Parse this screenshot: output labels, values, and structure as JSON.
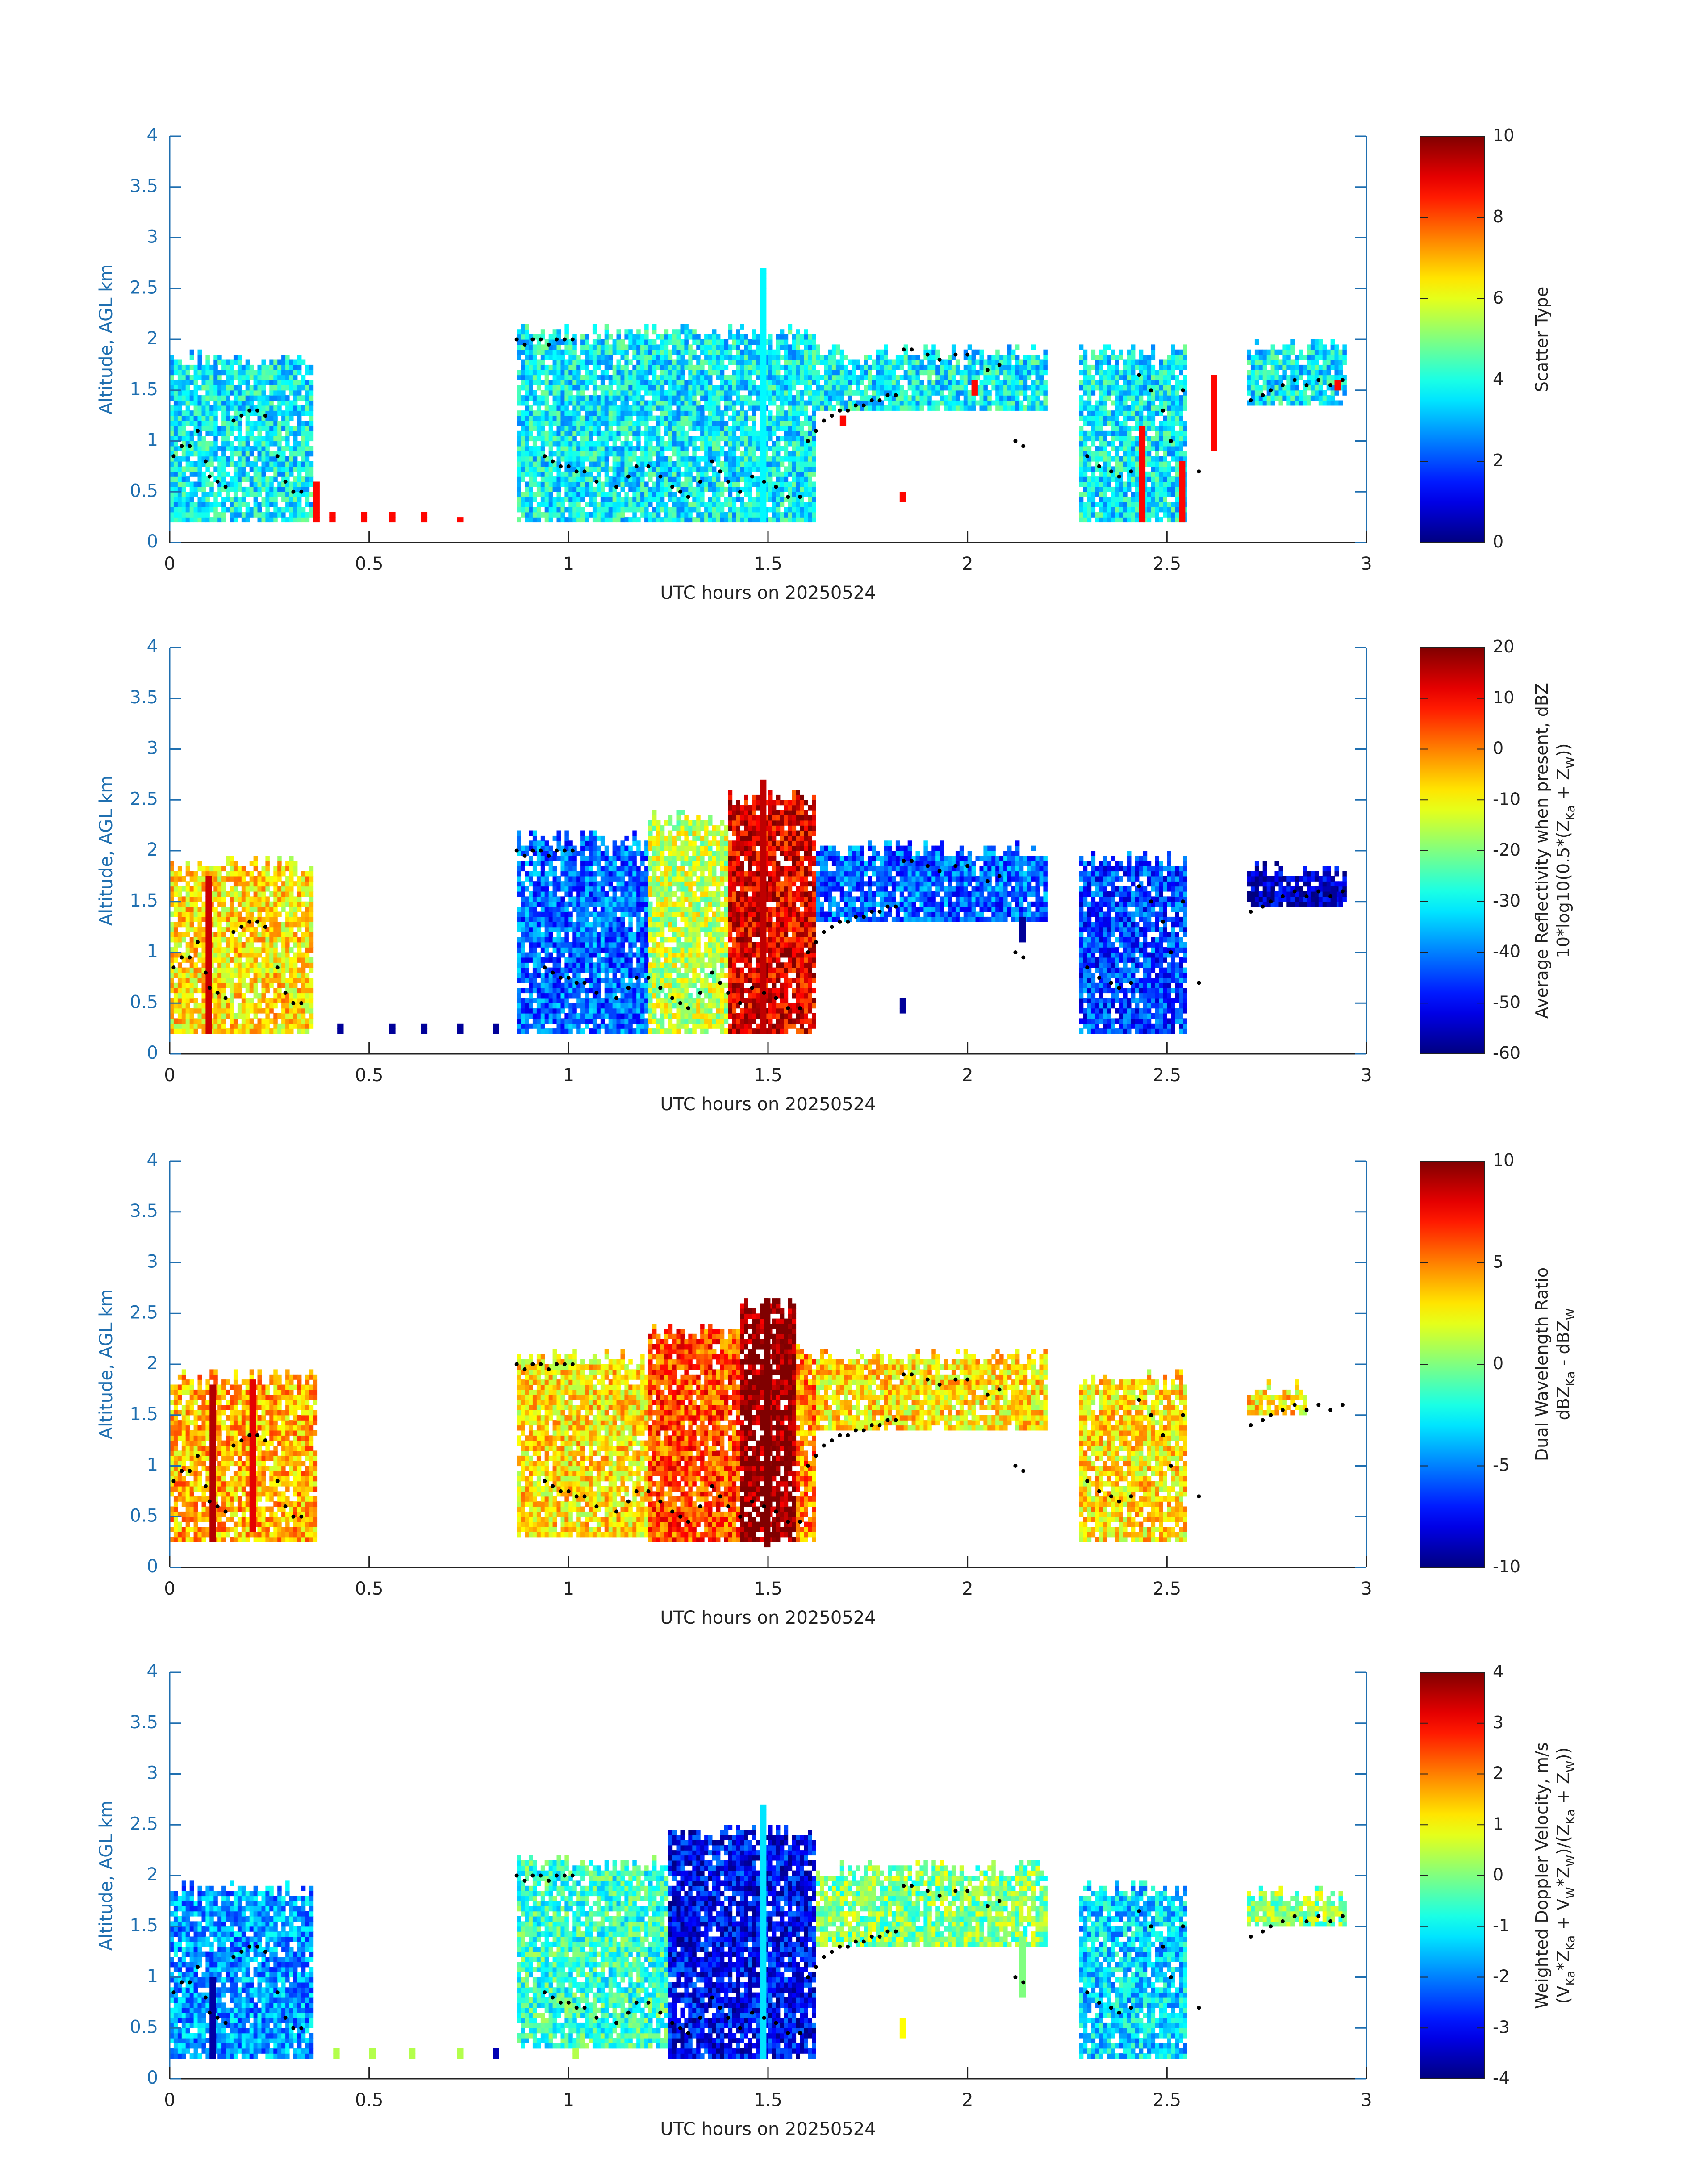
{
  "figure": {
    "date": "20250524"
  },
  "chart_data": [
    {
      "type": "heatmap",
      "variable": "scatter_type",
      "xlabel": "UTC hours on 20250524",
      "ylabel": "Altitude, AGL km",
      "xlim": [
        0,
        3
      ],
      "ylim": [
        0,
        4
      ],
      "xticks": [
        0,
        0.5,
        1,
        1.5,
        2,
        2.5,
        3
      ],
      "xtick_labels": [
        "0",
        "0.5",
        "1",
        "1.5",
        "2",
        "2.5",
        "3"
      ],
      "yticks": [
        0,
        0.5,
        1,
        1.5,
        2,
        2.5,
        3,
        3.5,
        4
      ],
      "ytick_labels": [
        "0",
        "0.5",
        "1",
        "1.5",
        "2",
        "2.5",
        "3",
        "3.5",
        "4"
      ],
      "colorbar": {
        "label_lines": [
          "Scatter Type"
        ],
        "clim": [
          0,
          10
        ],
        "ticks": [
          0,
          2,
          4,
          6,
          8,
          10
        ],
        "tick_labels": [
          "0",
          "2",
          "4",
          "6",
          "8",
          "10"
        ],
        "colormap": "jet"
      },
      "regions": [
        {
          "x0": 0.0,
          "x1": 0.36,
          "top": 1.8,
          "bottom": 0.2,
          "value": 3.7
        },
        {
          "x0": 0.87,
          "x1": 1.62,
          "top": 2.05,
          "bottom": 0.2,
          "value": 3.7
        },
        {
          "x0": 1.62,
          "x1": 2.2,
          "top": 1.85,
          "bottom": 1.3,
          "value": 3.7
        },
        {
          "x0": 2.28,
          "x1": 2.55,
          "top": 1.85,
          "bottom": 0.2,
          "value": 3.7
        },
        {
          "x0": 2.7,
          "x1": 2.95,
          "top": 1.9,
          "bottom": 1.35,
          "value": 3.7
        }
      ],
      "spikes": [
        {
          "x": 1.48,
          "top": 2.65,
          "value": 3.7
        },
        {
          "x": 0.36,
          "top": 0.6,
          "bottom": 0.2,
          "value": 8.7
        },
        {
          "x": 0.4,
          "top": 0.3,
          "bottom": 0.2,
          "value": 8.7
        },
        {
          "x": 0.48,
          "top": 0.3,
          "bottom": 0.2,
          "value": 8.7
        },
        {
          "x": 0.55,
          "top": 0.3,
          "bottom": 0.2,
          "value": 8.7
        },
        {
          "x": 0.63,
          "top": 0.3,
          "bottom": 0.2,
          "value": 8.7
        },
        {
          "x": 0.72,
          "top": 0.25,
          "bottom": 0.2,
          "value": 8.7
        },
        {
          "x": 1.68,
          "top": 1.25,
          "bottom": 1.15,
          "value": 8.7
        },
        {
          "x": 1.83,
          "top": 0.5,
          "bottom": 0.4,
          "value": 8.7
        },
        {
          "x": 2.01,
          "top": 1.6,
          "bottom": 1.45,
          "value": 8.7
        },
        {
          "x": 2.43,
          "top": 1.15,
          "bottom": 0.2,
          "value": 8.7
        },
        {
          "x": 2.53,
          "top": 0.8,
          "bottom": 0.2,
          "value": 8.7
        },
        {
          "x": 2.61,
          "top": 1.65,
          "bottom": 0.9,
          "value": 8.7
        },
        {
          "x": 2.92,
          "top": 1.6,
          "bottom": 1.5,
          "value": 8.7
        }
      ]
    },
    {
      "type": "heatmap",
      "variable": "reflectivity",
      "xlabel": "UTC hours on 20250524",
      "ylabel": "Altitude, AGL km",
      "xlim": [
        0,
        3
      ],
      "ylim": [
        0,
        4
      ],
      "xticks": [
        0,
        0.5,
        1,
        1.5,
        2,
        2.5,
        3
      ],
      "xtick_labels": [
        "0",
        "0.5",
        "1",
        "1.5",
        "2",
        "2.5",
        "3"
      ],
      "yticks": [
        0,
        0.5,
        1,
        1.5,
        2,
        2.5,
        3,
        3.5,
        4
      ],
      "ytick_labels": [
        "0",
        "0.5",
        "1",
        "1.5",
        "2",
        "2.5",
        "3",
        "3.5",
        "4"
      ],
      "colorbar": {
        "label_lines": [
          "Average Reflectivity when present, dBZ",
          "10*log10(0.5*(Z_Ka + Z_W))"
        ],
        "clim": [
          -60,
          20
        ],
        "ticks": [
          -60,
          -50,
          -40,
          -30,
          -20,
          -10,
          0,
          10,
          20
        ],
        "tick_labels": [
          "-60",
          "-50",
          "-40",
          "-30",
          "-20",
          "-10",
          "0",
          "10",
          "20"
        ],
        "colormap": "jet"
      },
      "regions": [
        {
          "x0": 0.0,
          "x1": 0.36,
          "top": 1.85,
          "bottom": 0.2,
          "value": -8
        },
        {
          "x0": 0.87,
          "x1": 1.2,
          "top": 2.1,
          "bottom": 0.2,
          "value": -42
        },
        {
          "x0": 1.2,
          "x1": 1.4,
          "top": 2.3,
          "bottom": 0.2,
          "value": -15
        },
        {
          "x0": 1.4,
          "x1": 1.62,
          "top": 2.5,
          "bottom": 0.2,
          "value": 12
        },
        {
          "x0": 1.62,
          "x1": 2.2,
          "top": 2.0,
          "bottom": 1.3,
          "value": -42
        },
        {
          "x0": 2.28,
          "x1": 2.55,
          "top": 1.9,
          "bottom": 0.2,
          "value": -45
        },
        {
          "x0": 2.7,
          "x1": 2.95,
          "top": 1.8,
          "bottom": 1.45,
          "value": -55
        }
      ],
      "spikes": [
        {
          "x": 1.48,
          "top": 2.65,
          "value": 15
        },
        {
          "x": 0.09,
          "top": 1.75,
          "bottom": 0.2,
          "value": 14
        },
        {
          "x": 0.42,
          "top": 0.3,
          "bottom": 0.2,
          "value": -58
        },
        {
          "x": 0.55,
          "top": 0.3,
          "bottom": 0.2,
          "value": -58
        },
        {
          "x": 0.63,
          "top": 0.3,
          "bottom": 0.2,
          "value": -58
        },
        {
          "x": 0.72,
          "top": 0.3,
          "bottom": 0.2,
          "value": -58
        },
        {
          "x": 0.81,
          "top": 0.3,
          "bottom": 0.2,
          "value": -58
        },
        {
          "x": 1.83,
          "top": 0.55,
          "bottom": 0.4,
          "value": -58
        },
        {
          "x": 2.13,
          "top": 1.35,
          "bottom": 1.1,
          "value": -58
        },
        {
          "x": 2.91,
          "top": 1.65,
          "bottom": 1.45,
          "value": -58
        }
      ]
    },
    {
      "type": "heatmap",
      "variable": "dual_wavelength_ratio",
      "xlabel": "UTC hours on 20250524",
      "ylabel": "Altitude, AGL km",
      "xlim": [
        0,
        3
      ],
      "ylim": [
        0,
        4
      ],
      "xticks": [
        0,
        0.5,
        1,
        1.5,
        2,
        2.5,
        3
      ],
      "xtick_labels": [
        "0",
        "0.5",
        "1",
        "1.5",
        "2",
        "2.5",
        "3"
      ],
      "yticks": [
        0,
        0.5,
        1,
        1.5,
        2,
        2.5,
        3,
        3.5,
        4
      ],
      "ytick_labels": [
        "0",
        "0.5",
        "1",
        "1.5",
        "2",
        "2.5",
        "3",
        "3.5",
        "4"
      ],
      "colorbar": {
        "label_lines": [
          "Dual Wavelength Ratio",
          "dBZ_Ka - dBZ_W"
        ],
        "clim": [
          -10,
          10
        ],
        "ticks": [
          -10,
          -5,
          0,
          5,
          10
        ],
        "tick_labels": [
          "-10",
          "-5",
          "0",
          "5",
          "10"
        ],
        "colormap": "jet"
      },
      "regions": [
        {
          "x0": 0.0,
          "x1": 0.37,
          "top": 1.85,
          "bottom": 0.25,
          "value": 4
        },
        {
          "x0": 0.87,
          "x1": 1.2,
          "top": 2.05,
          "bottom": 0.3,
          "value": 3
        },
        {
          "x0": 1.2,
          "x1": 1.43,
          "top": 2.3,
          "bottom": 0.25,
          "value": 6
        },
        {
          "x0": 1.43,
          "x1": 1.57,
          "top": 2.55,
          "bottom": 0.25,
          "value": 10
        },
        {
          "x0": 1.57,
          "x1": 1.62,
          "top": 2.1,
          "bottom": 0.25,
          "value": 5
        },
        {
          "x0": 1.62,
          "x1": 2.2,
          "top": 2.05,
          "bottom": 1.35,
          "value": 3
        },
        {
          "x0": 2.28,
          "x1": 2.55,
          "top": 1.85,
          "bottom": 0.25,
          "value": 3
        },
        {
          "x0": 2.7,
          "x1": 2.85,
          "top": 1.75,
          "bottom": 1.5,
          "value": 3
        }
      ],
      "spikes": [
        {
          "x": 1.49,
          "top": 2.62,
          "value": 10
        },
        {
          "x": 0.1,
          "top": 1.8,
          "bottom": 0.25,
          "value": 9
        },
        {
          "x": 0.2,
          "top": 1.85,
          "bottom": 0.35,
          "value": 8
        }
      ]
    },
    {
      "type": "heatmap",
      "variable": "doppler_velocity",
      "xlabel": "UTC hours on 20250524",
      "ylabel": "Altitude, AGL km",
      "xlim": [
        0,
        3
      ],
      "ylim": [
        0,
        4
      ],
      "xticks": [
        0,
        0.5,
        1,
        1.5,
        2,
        2.5,
        3
      ],
      "xtick_labels": [
        "0",
        "0.5",
        "1",
        "1.5",
        "2",
        "2.5",
        "3"
      ],
      "yticks": [
        0,
        0.5,
        1,
        1.5,
        2,
        2.5,
        3,
        3.5,
        4
      ],
      "ytick_labels": [
        "0",
        "0.5",
        "1",
        "1.5",
        "2",
        "2.5",
        "3",
        "3.5",
        "4"
      ],
      "colorbar": {
        "label_lines": [
          "Weighted Doppler Velocity, m/s",
          "(V_Ka*Z_Ka + V_W*Z_W)/(Z_Ka + Z_W))"
        ],
        "clim": [
          -4,
          4
        ],
        "ticks": [
          -4,
          -3,
          -2,
          -1,
          0,
          1,
          2,
          3,
          4
        ],
        "tick_labels": [
          "-4",
          "-3",
          "-2",
          "-1",
          "0",
          "1",
          "2",
          "3",
          "4"
        ],
        "colormap": "jet"
      },
      "regions": [
        {
          "x0": 0.0,
          "x1": 0.36,
          "top": 1.85,
          "bottom": 0.2,
          "value": -1.8
        },
        {
          "x0": 0.87,
          "x1": 1.25,
          "top": 2.1,
          "bottom": 0.3,
          "value": -0.6
        },
        {
          "x0": 1.25,
          "x1": 1.62,
          "top": 2.4,
          "bottom": 0.2,
          "value": -3.0
        },
        {
          "x0": 1.62,
          "x1": 2.2,
          "top": 2.05,
          "bottom": 1.3,
          "value": 0.0
        },
        {
          "x0": 2.28,
          "x1": 2.55,
          "top": 1.85,
          "bottom": 0.2,
          "value": -1.3
        },
        {
          "x0": 2.7,
          "x1": 2.95,
          "top": 1.8,
          "bottom": 1.5,
          "value": 0.1
        }
      ],
      "spikes": [
        {
          "x": 1.48,
          "top": 2.65,
          "value": -1.2
        },
        {
          "x": 0.1,
          "top": 1.0,
          "bottom": 0.2,
          "value": -3.7
        },
        {
          "x": 0.41,
          "top": 0.3,
          "bottom": 0.2,
          "value": 0.4
        },
        {
          "x": 0.5,
          "top": 0.3,
          "bottom": 0.2,
          "value": 0.4
        },
        {
          "x": 0.6,
          "top": 0.3,
          "bottom": 0.2,
          "value": 0.4
        },
        {
          "x": 0.72,
          "top": 0.3,
          "bottom": 0.2,
          "value": 0.4
        },
        {
          "x": 0.81,
          "top": 0.3,
          "bottom": 0.2,
          "value": -3.6
        },
        {
          "x": 1.01,
          "top": 0.3,
          "bottom": 0.2,
          "value": 0.4
        },
        {
          "x": 1.83,
          "top": 0.6,
          "bottom": 0.4,
          "value": 1.0
        },
        {
          "x": 2.13,
          "top": 1.4,
          "bottom": 0.8,
          "value": 0.0
        }
      ]
    }
  ],
  "cloud_base_dots": [
    [
      0.01,
      0.85
    ],
    [
      0.03,
      0.95
    ],
    [
      0.05,
      0.95
    ],
    [
      0.07,
      1.1
    ],
    [
      0.09,
      0.8
    ],
    [
      0.1,
      0.65
    ],
    [
      0.12,
      0.6
    ],
    [
      0.14,
      0.55
    ],
    [
      0.16,
      1.2
    ],
    [
      0.18,
      1.25
    ],
    [
      0.2,
      1.3
    ],
    [
      0.22,
      1.3
    ],
    [
      0.24,
      1.25
    ],
    [
      0.27,
      0.85
    ],
    [
      0.29,
      0.6
    ],
    [
      0.31,
      0.5
    ],
    [
      0.33,
      0.5
    ],
    [
      0.87,
      2.0
    ],
    [
      0.89,
      1.95
    ],
    [
      0.91,
      2.0
    ],
    [
      0.93,
      2.0
    ],
    [
      0.95,
      1.95
    ],
    [
      0.97,
      2.0
    ],
    [
      0.99,
      2.0
    ],
    [
      1.01,
      2.0
    ],
    [
      0.94,
      0.85
    ],
    [
      0.96,
      0.8
    ],
    [
      0.98,
      0.75
    ],
    [
      1.0,
      0.75
    ],
    [
      1.02,
      0.7
    ],
    [
      1.04,
      0.7
    ],
    [
      1.07,
      0.6
    ],
    [
      1.12,
      0.55
    ],
    [
      1.15,
      0.65
    ],
    [
      1.17,
      0.75
    ],
    [
      1.2,
      0.75
    ],
    [
      1.23,
      0.65
    ],
    [
      1.26,
      0.55
    ],
    [
      1.28,
      0.5
    ],
    [
      1.3,
      0.45
    ],
    [
      1.33,
      0.6
    ],
    [
      1.36,
      0.8
    ],
    [
      1.38,
      0.7
    ],
    [
      1.4,
      0.6
    ],
    [
      1.43,
      0.5
    ],
    [
      1.46,
      0.65
    ],
    [
      1.49,
      0.6
    ],
    [
      1.52,
      0.55
    ],
    [
      1.55,
      0.45
    ],
    [
      1.58,
      0.45
    ],
    [
      1.6,
      1.0
    ],
    [
      1.62,
      1.1
    ],
    [
      1.64,
      1.2
    ],
    [
      1.66,
      1.25
    ],
    [
      1.68,
      1.3
    ],
    [
      1.7,
      1.3
    ],
    [
      1.72,
      1.35
    ],
    [
      1.74,
      1.35
    ],
    [
      1.76,
      1.4
    ],
    [
      1.78,
      1.4
    ],
    [
      1.8,
      1.45
    ],
    [
      1.82,
      1.45
    ],
    [
      1.84,
      1.9
    ],
    [
      1.86,
      1.9
    ],
    [
      1.9,
      1.85
    ],
    [
      1.93,
      1.8
    ],
    [
      1.97,
      1.85
    ],
    [
      2.0,
      1.85
    ],
    [
      2.05,
      1.7
    ],
    [
      2.08,
      1.75
    ],
    [
      2.12,
      1.0
    ],
    [
      2.14,
      0.95
    ],
    [
      2.3,
      0.85
    ],
    [
      2.33,
      0.75
    ],
    [
      2.36,
      0.7
    ],
    [
      2.38,
      0.65
    ],
    [
      2.41,
      0.7
    ],
    [
      2.43,
      1.65
    ],
    [
      2.46,
      1.5
    ],
    [
      2.49,
      1.3
    ],
    [
      2.51,
      1.0
    ],
    [
      2.54,
      1.5
    ],
    [
      2.58,
      0.7
    ],
    [
      2.71,
      1.4
    ],
    [
      2.74,
      1.45
    ],
    [
      2.76,
      1.5
    ],
    [
      2.79,
      1.55
    ],
    [
      2.82,
      1.6
    ],
    [
      2.85,
      1.55
    ],
    [
      2.88,
      1.6
    ],
    [
      2.91,
      1.55
    ],
    [
      2.94,
      1.6
    ]
  ]
}
